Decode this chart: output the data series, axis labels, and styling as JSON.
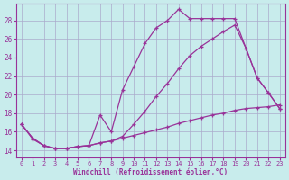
{
  "xlabel": "Windchill (Refroidissement éolien,°C)",
  "background_color": "#c8ecec",
  "grid_color": "#aaaacc",
  "line_color": "#993399",
  "x_ticks": [
    0,
    1,
    2,
    3,
    4,
    5,
    6,
    7,
    8,
    9,
    10,
    11,
    12,
    13,
    14,
    15,
    16,
    17,
    18,
    19,
    20,
    21,
    22,
    23
  ],
  "y_ticks": [
    14,
    16,
    18,
    20,
    22,
    24,
    26,
    28
  ],
  "ylim": [
    13.2,
    29.8
  ],
  "xlim": [
    -0.5,
    23.5
  ],
  "line1_x": [
    0,
    1,
    2,
    3,
    4,
    5,
    6,
    7,
    8,
    9,
    10,
    11,
    12,
    13,
    14,
    15,
    16,
    17,
    18,
    19,
    20,
    21,
    22,
    23
  ],
  "line1_y": [
    16.8,
    15.3,
    14.5,
    14.2,
    14.2,
    14.4,
    14.5,
    17.8,
    16.0,
    20.5,
    23.0,
    25.5,
    27.2,
    28.0,
    29.2,
    28.2,
    28.2,
    28.2,
    28.2,
    28.2,
    25.0,
    21.8,
    20.2,
    18.5
  ],
  "line2_x": [
    0,
    1,
    2,
    3,
    4,
    5,
    6,
    7,
    8,
    9,
    10,
    11,
    12,
    13,
    14,
    15,
    16,
    17,
    18,
    19,
    20,
    21,
    22,
    23
  ],
  "line2_y": [
    16.8,
    15.3,
    14.5,
    14.2,
    14.2,
    14.4,
    14.5,
    14.8,
    15.0,
    15.5,
    16.8,
    18.2,
    19.8,
    21.2,
    22.8,
    24.2,
    25.2,
    26.0,
    26.8,
    27.5,
    25.0,
    21.8,
    20.2,
    18.5
  ],
  "line3_x": [
    0,
    1,
    2,
    3,
    4,
    5,
    6,
    7,
    8,
    9,
    10,
    11,
    12,
    13,
    14,
    15,
    16,
    17,
    18,
    19,
    20,
    21,
    22,
    23
  ],
  "line3_y": [
    16.8,
    15.2,
    14.5,
    14.2,
    14.2,
    14.4,
    14.5,
    14.8,
    15.0,
    15.3,
    15.6,
    15.9,
    16.2,
    16.5,
    16.9,
    17.2,
    17.5,
    17.8,
    18.0,
    18.3,
    18.5,
    18.6,
    18.7,
    18.9
  ]
}
